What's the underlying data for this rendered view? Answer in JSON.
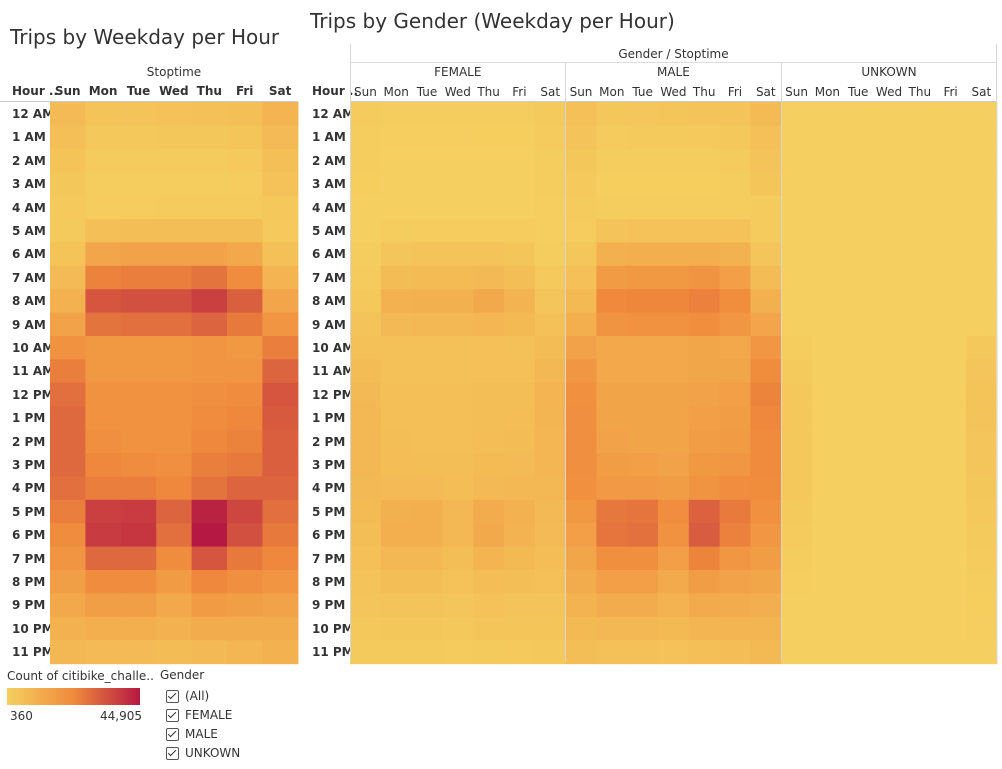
{
  "left_title": "Trips by Weekday per Hour",
  "right_title": "Trips by Gender (Weekday per Hour)",
  "left_header": "Stoptime",
  "right_header": "Gender / Stoptime",
  "row_field_label": "Hour ..",
  "legend": {
    "title": "Count of citibike_challe..",
    "min_label": "360",
    "max_label": "44,905",
    "min_color": "#f5cf5f",
    "mid_color": "#f08a3c",
    "max_color": "#b51843"
  },
  "filter": {
    "title": "Gender",
    "options": [
      "(All)",
      "FEMALE",
      "MALE",
      "UNKOWN"
    ]
  },
  "chart_data": [
    {
      "type": "heatmap",
      "title": "Trips by Weekday per Hour",
      "column_header": "Stoptime",
      "row_header": "Hour ..",
      "days": [
        "Sun",
        "Mon",
        "Tue",
        "Wed",
        "Thu",
        "Fri",
        "Sat"
      ],
      "hours": [
        "12 AM",
        "1 AM",
        "2 AM",
        "3 AM",
        "4 AM",
        "5 AM",
        "6 AM",
        "7 AM",
        "8 AM",
        "9 AM",
        "10 AM",
        "11 AM",
        "12 PM",
        "1 PM",
        "2 PM",
        "3 PM",
        "4 PM",
        "5 PM",
        "6 PM",
        "7 PM",
        "8 PM",
        "9 PM",
        "10 PM",
        "11 PM"
      ],
      "values": [
        [
          7000,
          4000,
          4200,
          4500,
          5000,
          5500,
          9000
        ],
        [
          5500,
          2500,
          2600,
          2800,
          3000,
          3400,
          7000
        ],
        [
          4000,
          1500,
          1500,
          1600,
          1700,
          2200,
          5500
        ],
        [
          3000,
          1000,
          1000,
          1100,
          1100,
          1400,
          4500
        ],
        [
          2200,
          1400,
          1400,
          1500,
          1500,
          1600,
          2500
        ],
        [
          2000,
          5500,
          6000,
          6000,
          6000,
          6000,
          2200
        ],
        [
          4000,
          14000,
          15000,
          15000,
          15000,
          13000,
          5000
        ],
        [
          7000,
          24000,
          25000,
          25000,
          27000,
          22000,
          9000
        ],
        [
          10000,
          33000,
          34000,
          34000,
          37000,
          31000,
          14000
        ],
        [
          15000,
          27000,
          28000,
          28000,
          30000,
          26000,
          19000
        ],
        [
          20000,
          18000,
          18000,
          18000,
          19000,
          18000,
          25000
        ],
        [
          25000,
          18000,
          18000,
          18000,
          19000,
          19000,
          30000
        ],
        [
          28000,
          20000,
          20000,
          20000,
          21000,
          22000,
          33000
        ],
        [
          29000,
          20000,
          20000,
          20000,
          22000,
          23000,
          32000
        ],
        [
          29000,
          21000,
          20000,
          20000,
          23000,
          24000,
          31000
        ],
        [
          29000,
          23000,
          22000,
          21000,
          25000,
          26000,
          31000
        ],
        [
          28000,
          25000,
          25000,
          23000,
          27000,
          30000,
          30000
        ],
        [
          25000,
          37000,
          38000,
          30000,
          43000,
          36000,
          28000
        ],
        [
          22000,
          38000,
          39000,
          28000,
          44905,
          34000,
          26000
        ],
        [
          19000,
          29000,
          29000,
          22000,
          33000,
          26000,
          23000
        ],
        [
          16000,
          22000,
          22000,
          17000,
          23000,
          21000,
          19000
        ],
        [
          13000,
          16000,
          16000,
          13000,
          17000,
          16000,
          15000
        ],
        [
          10000,
          11000,
          11000,
          10000,
          12000,
          12000,
          12000
        ],
        [
          8000,
          7000,
          7000,
          6500,
          7500,
          8500,
          10000
        ]
      ]
    },
    {
      "type": "heatmap",
      "title": "Trips by Gender (Weekday per Hour)",
      "column_header": "Gender / Stoptime",
      "row_header": "Hour ..",
      "groups": [
        "FEMALE",
        "MALE",
        "UNKOWN"
      ],
      "days": [
        "Sun",
        "Mon",
        "Tue",
        "Wed",
        "Thu",
        "Fri",
        "Sat"
      ],
      "hours": [
        "12 AM",
        "1 AM",
        "2 AM",
        "3 AM",
        "4 AM",
        "5 AM",
        "6 AM",
        "7 AM",
        "8 AM",
        "9 AM",
        "10 AM",
        "11 AM",
        "12 PM",
        "1 PM",
        "2 PM",
        "3 PM",
        "4 PM",
        "5 PM",
        "6 PM",
        "7 PM",
        "8 PM",
        "9 PM",
        "10 PM",
        "11 PM"
      ],
      "series": [
        {
          "name": "FEMALE",
          "values": [
            [
              1500,
              900,
              900,
              1000,
              1100,
              1200,
              2000
            ],
            [
              1200,
              600,
              600,
              600,
              700,
              800,
              1600
            ],
            [
              900,
              400,
              400,
              400,
              400,
              500,
              1200
            ],
            [
              700,
              300,
              300,
              300,
              300,
              400,
              1000
            ],
            [
              500,
              400,
              400,
              400,
              400,
              400,
              600
            ],
            [
              500,
              1300,
              1400,
              1400,
              1400,
              1400,
              600
            ],
            [
              1000,
              3500,
              3800,
              3800,
              3800,
              3300,
              1300
            ],
            [
              1700,
              6500,
              6800,
              6800,
              7500,
              6000,
              2300
            ],
            [
              2700,
              10000,
              10500,
              10500,
              12500,
              9500,
              3500
            ],
            [
              3800,
              7500,
              7800,
              7800,
              8500,
              7200,
              5000
            ],
            [
              5000,
              5000,
              5000,
              5000,
              5200,
              5000,
              6500
            ],
            [
              6500,
              5000,
              5000,
              5000,
              5200,
              5200,
              8000
            ],
            [
              7500,
              5500,
              5500,
              5500,
              5800,
              6000,
              9000
            ],
            [
              7800,
              5500,
              5500,
              5500,
              6000,
              6300,
              8800
            ],
            [
              7800,
              5800,
              5500,
              5500,
              6300,
              6500,
              8500
            ],
            [
              7800,
              6300,
              6000,
              5800,
              6800,
              7000,
              8500
            ],
            [
              7500,
              7000,
              7000,
              6300,
              7500,
              8000,
              8000
            ],
            [
              6800,
              10500,
              11000,
              8200,
              12000,
              10000,
              7500
            ],
            [
              6000,
              11000,
              11000,
              7800,
              12500,
              9500,
              7000
            ],
            [
              5200,
              8000,
              8000,
              6000,
              9000,
              7200,
              6300
            ],
            [
              4300,
              6000,
              6000,
              4600,
              6300,
              5800,
              5200
            ],
            [
              3500,
              4300,
              4300,
              3600,
              4600,
              4300,
              4100
            ],
            [
              2700,
              3000,
              3000,
              2700,
              3300,
              3300,
              3300
            ],
            [
              2100,
              1900,
              1900,
              1800,
              2000,
              2300,
              2700
            ]
          ]
        },
        {
          "name": "MALE",
          "values": [
            [
              5200,
              3000,
              3200,
              3400,
              3800,
              4100,
              6700
            ],
            [
              4100,
              1800,
              1900,
              2100,
              2200,
              2500,
              5200
            ],
            [
              3000,
              1100,
              1100,
              1200,
              1200,
              1600,
              4100
            ],
            [
              2200,
              700,
              700,
              800,
              800,
              1000,
              3300
            ],
            [
              1600,
              1000,
              1000,
              1100,
              1100,
              1200,
              1800
            ],
            [
              1400,
              4100,
              4500,
              4500,
              4500,
              4500,
              1500
            ],
            [
              2900,
              10300,
              11000,
              11000,
              11000,
              9600,
              3600
            ],
            [
              5200,
              17300,
              18000,
              18000,
              19300,
              15800,
              6600
            ],
            [
              7200,
              22800,
              23300,
              23300,
              24300,
              21300,
              10300
            ],
            [
              11000,
              19300,
              20000,
              20000,
              21300,
              18600,
              13800
            ],
            [
              14800,
              12800,
              12800,
              12800,
              13600,
              12800,
              18300
            ],
            [
              18300,
              12800,
              12800,
              12800,
              13600,
              13600,
              21800
            ],
            [
              20300,
              14300,
              14300,
              14300,
              15000,
              15800,
              23800
            ],
            [
              21000,
              14300,
              14300,
              14300,
              15800,
              16500,
              23100
            ],
            [
              21000,
              15000,
              14300,
              14300,
              16500,
              17300,
              22300
            ],
            [
              21000,
              16500,
              15800,
              15000,
              18000,
              18600,
              22300
            ],
            [
              20300,
              17800,
              17800,
              16500,
              19300,
              21600,
              21800
            ],
            [
              18000,
              26300,
              26800,
              21600,
              30700,
              25800,
              20300
            ],
            [
              15800,
              26800,
              27600,
              20000,
              31600,
              24300,
              18800
            ],
            [
              13600,
              20800,
              20800,
              15800,
              23800,
              18600,
              16500
            ],
            [
              11600,
              15800,
              15800,
              12300,
              16500,
              15000,
              13600
            ],
            [
              9400,
              11600,
              11600,
              9300,
              12300,
              11600,
              10800
            ],
            [
              7200,
              7800,
              7800,
              7200,
              8600,
              8600,
              8600
            ],
            [
              5800,
              5000,
              5000,
              4600,
              5400,
              6100,
              7200
            ]
          ]
        },
        {
          "name": "UNKOWN",
          "values": [
            [
              300,
              100,
              100,
              100,
              100,
              200,
              300
            ],
            [
              200,
              100,
              100,
              100,
              100,
              100,
              200
            ],
            [
              100,
              50,
              50,
              50,
              50,
              100,
              200
            ],
            [
              100,
              0,
              0,
              0,
              0,
              0,
              200
            ],
            [
              100,
              0,
              0,
              0,
              0,
              0,
              100
            ],
            [
              100,
              100,
              100,
              100,
              100,
              100,
              100
            ],
            [
              100,
              200,
              200,
              200,
              200,
              100,
              100
            ],
            [
              100,
              200,
              200,
              200,
              200,
              200,
              100
            ],
            [
              100,
              200,
              200,
              200,
              200,
              200,
              200
            ],
            [
              200,
              200,
              200,
              200,
              200,
              200,
              500
            ],
            [
              1000,
              200,
              200,
              200,
              200,
              200,
              2500
            ],
            [
              2000,
              200,
              200,
              200,
              200,
              300,
              3500
            ],
            [
              2500,
              200,
              200,
              200,
              200,
              300,
              4000
            ],
            [
              2700,
              200,
              200,
              200,
              200,
              300,
              3800
            ],
            [
              2700,
              200,
              200,
              200,
              200,
              300,
              3500
            ],
            [
              2700,
              200,
              200,
              200,
              200,
              300,
              3500
            ],
            [
              2500,
              200,
              200,
              200,
              200,
              300,
              3000
            ],
            [
              2000,
              200,
              200,
              200,
              200,
              300,
              2500
            ],
            [
              1500,
              200,
              200,
              200,
              200,
              200,
              2000
            ],
            [
              1000,
              200,
              200,
              200,
              200,
              200,
              1500
            ],
            [
              600,
              200,
              200,
              200,
              200,
              200,
              1000
            ],
            [
              400,
              200,
              200,
              200,
              200,
              200,
              800
            ],
            [
              300,
              200,
              200,
              200,
              200,
              200,
              600
            ],
            [
              300,
              100,
              100,
              100,
              100,
              200,
              400
            ]
          ]
        }
      ]
    }
  ]
}
